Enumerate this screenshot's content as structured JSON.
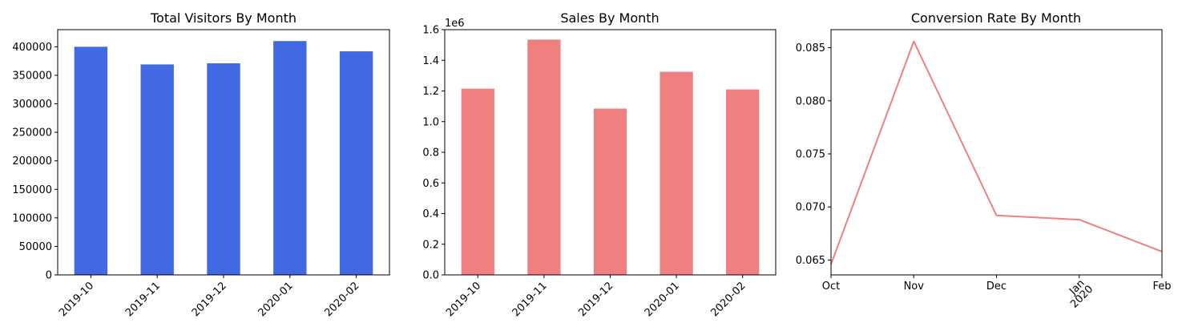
{
  "chart_data": [
    {
      "type": "bar",
      "title": "Total Visitors By Month",
      "categories": [
        "2019-10",
        "2019-11",
        "2019-12",
        "2020-01",
        "2020-02"
      ],
      "values": [
        400000,
        369000,
        371000,
        410000,
        392000
      ],
      "ylim": [
        0,
        430000
      ],
      "yticks": [
        0,
        50000,
        100000,
        150000,
        200000,
        250000,
        300000,
        350000,
        400000
      ],
      "ytick_labels": [
        "0",
        "50000",
        "100000",
        "150000",
        "200000",
        "250000",
        "300000",
        "350000",
        "400000"
      ],
      "color": "#4169e1",
      "grid": false
    },
    {
      "type": "bar",
      "title": "Sales By Month",
      "offset_label": "1e6",
      "categories": [
        "2019-10",
        "2019-11",
        "2019-12",
        "2020-01",
        "2020-02"
      ],
      "values": [
        1.215,
        1.535,
        1.085,
        1.325,
        1.21
      ],
      "ylim": [
        0,
        1.6
      ],
      "yticks": [
        0,
        0.2,
        0.4,
        0.6,
        0.8,
        1.0,
        1.2,
        1.4,
        1.6
      ],
      "ytick_labels": [
        "0.0",
        "0.2",
        "0.4",
        "0.6",
        "0.8",
        "1.0",
        "1.2",
        "1.4",
        "1.6"
      ],
      "color": "#f08080",
      "grid": false
    },
    {
      "type": "line",
      "title": "Conversion Rate By Month",
      "x": [
        "Oct",
        "Nov",
        "Dec",
        "Jan",
        "Feb"
      ],
      "x_sublabel": "2020",
      "values": [
        0.0646,
        0.0856,
        0.0692,
        0.0688,
        0.0658
      ],
      "ylim": [
        0.0636,
        0.0867
      ],
      "yticks": [
        0.065,
        0.07,
        0.075,
        0.08,
        0.085
      ],
      "ytick_labels": [
        "0.065",
        "0.070",
        "0.075",
        "0.080",
        "0.085"
      ],
      "color": "#f08080",
      "grid": false
    }
  ]
}
